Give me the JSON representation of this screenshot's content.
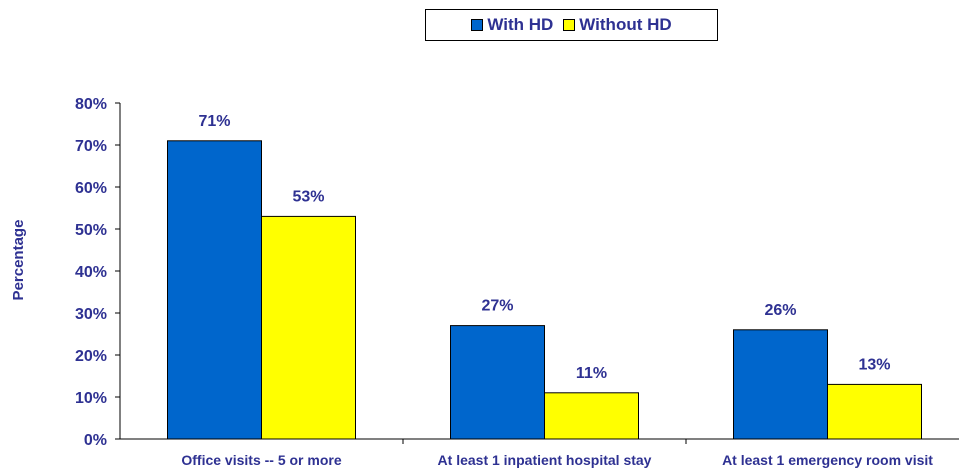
{
  "chart_data": {
    "type": "bar",
    "categories": [
      "Office visits -- 5 or more",
      "At least 1 inpatient hospital stay",
      "At least 1 emergency room visit"
    ],
    "series": [
      {
        "name": "With HD",
        "values": [
          71,
          27,
          26
        ],
        "labels": [
          "71%",
          "27%",
          "26%"
        ],
        "color": "#0066cc"
      },
      {
        "name": "Without HD",
        "values": [
          53,
          11,
          13
        ],
        "labels": [
          "53%",
          "11%",
          "13%"
        ],
        "color": "#ffff00"
      }
    ],
    "ylabel": "Percentage",
    "ylim": [
      0,
      80
    ],
    "yticks": [
      "0%",
      "10%",
      "20%",
      "30%",
      "40%",
      "50%",
      "60%",
      "70%",
      "80%"
    ],
    "grid": false,
    "legend_position": "top-right"
  }
}
